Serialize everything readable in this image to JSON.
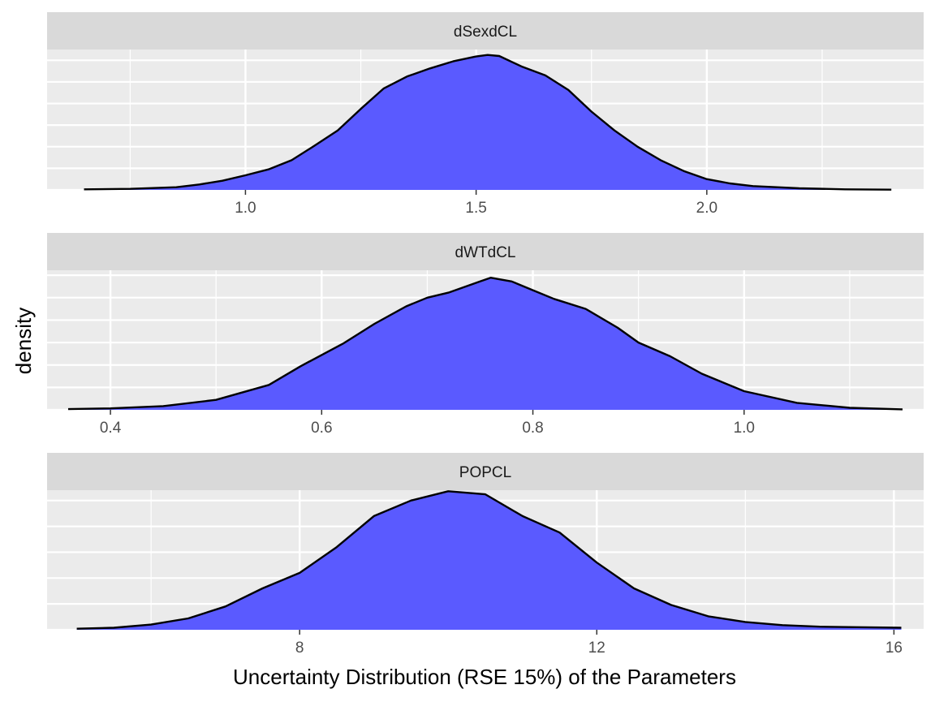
{
  "chart_data": {
    "type": "density",
    "xlabel": "Uncertainty Distribution (RSE 15%) of the Parameters",
    "ylabel": "density",
    "fill_color": "#5a5aff",
    "line_color": "#000000",
    "panel_bg": "#ebebeb",
    "strip_bg": "#d9d9d9",
    "grid": true,
    "scales": "free",
    "facets": [
      {
        "name": "dSexdCL",
        "xlim": [
          0.57,
          2.47
        ],
        "ylim": [
          0,
          2.6
        ],
        "x_ticks": [
          1.0,
          1.5,
          2.0
        ],
        "x_tick_labels": [
          "1.0",
          "1.5",
          "2.0"
        ],
        "x_minor": [
          0.75,
          1.25,
          1.75,
          2.25
        ],
        "y_grid": [
          0.0,
          0.4,
          0.8,
          1.2,
          1.6,
          2.0,
          2.4
        ],
        "curve_x": [
          0.65,
          0.75,
          0.85,
          0.9,
          0.95,
          1.0,
          1.05,
          1.1,
          1.15,
          1.2,
          1.25,
          1.3,
          1.35,
          1.4,
          1.45,
          1.5,
          1.525,
          1.55,
          1.6,
          1.65,
          1.7,
          1.75,
          1.8,
          1.85,
          1.9,
          1.95,
          2.0,
          2.05,
          2.1,
          2.2,
          2.3,
          2.4
        ],
        "curve_y": [
          0.01,
          0.02,
          0.05,
          0.1,
          0.17,
          0.27,
          0.38,
          0.55,
          0.82,
          1.1,
          1.5,
          1.88,
          2.1,
          2.25,
          2.38,
          2.47,
          2.5,
          2.48,
          2.28,
          2.12,
          1.85,
          1.45,
          1.1,
          0.8,
          0.55,
          0.35,
          0.2,
          0.12,
          0.07,
          0.03,
          0.01,
          0.005
        ]
      },
      {
        "name": "dWTdCL",
        "xlim": [
          0.34,
          1.17
        ],
        "ylim": [
          0,
          5.6
        ],
        "x_ticks": [
          0.4,
          0.6,
          0.8,
          1.0
        ],
        "x_tick_labels": [
          "0.4",
          "0.6",
          "0.8",
          "1.0"
        ],
        "x_minor": [
          0.5,
          0.7,
          0.9,
          1.1
        ],
        "y_grid": [
          0.0,
          0.9,
          1.8,
          2.7,
          3.6,
          4.5,
          5.4
        ],
        "curve_x": [
          0.36,
          0.4,
          0.45,
          0.5,
          0.55,
          0.58,
          0.6,
          0.62,
          0.65,
          0.68,
          0.7,
          0.72,
          0.75,
          0.76,
          0.78,
          0.8,
          0.82,
          0.85,
          0.88,
          0.9,
          0.93,
          0.96,
          1.0,
          1.05,
          1.1,
          1.15
        ],
        "curve_y": [
          0.03,
          0.06,
          0.15,
          0.4,
          1.0,
          1.75,
          2.2,
          2.65,
          3.45,
          4.15,
          4.5,
          4.7,
          5.15,
          5.3,
          5.15,
          4.8,
          4.45,
          4.05,
          3.3,
          2.7,
          2.15,
          1.45,
          0.75,
          0.28,
          0.08,
          0.02
        ]
      },
      {
        "name": "POPCL",
        "xlim": [
          4.6,
          16.4
        ],
        "ylim": [
          0,
          0.27
        ],
        "x_ticks": [
          8,
          12,
          16
        ],
        "x_tick_labels": [
          "8",
          "12",
          "16"
        ],
        "x_minor": [
          6,
          10,
          14
        ],
        "y_grid": [
          0.0,
          0.05,
          0.1,
          0.15,
          0.2,
          0.25
        ],
        "curve_x": [
          5,
          5.5,
          6,
          6.5,
          7,
          7.5,
          8,
          8.5,
          9,
          9.5,
          10,
          10.5,
          11,
          11.5,
          12,
          12.5,
          13,
          13.5,
          14,
          14.5,
          15,
          15.5,
          16.1
        ],
        "curve_y": [
          0.002,
          0.004,
          0.01,
          0.022,
          0.045,
          0.08,
          0.11,
          0.16,
          0.22,
          0.25,
          0.268,
          0.262,
          0.22,
          0.188,
          0.13,
          0.08,
          0.048,
          0.026,
          0.015,
          0.009,
          0.006,
          0.005,
          0.004
        ]
      }
    ]
  }
}
